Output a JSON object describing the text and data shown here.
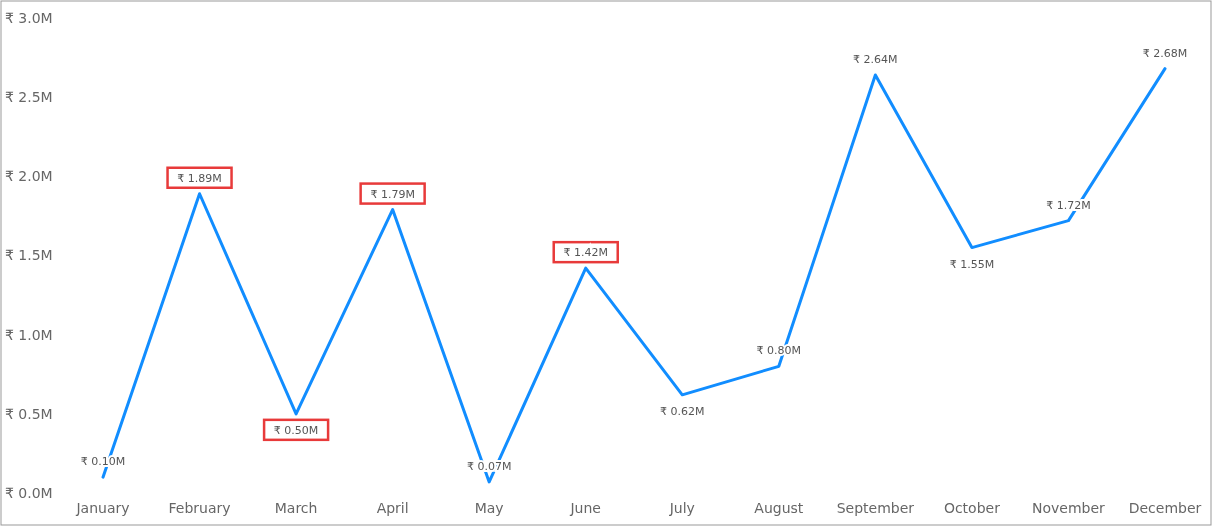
{
  "chart_data": {
    "type": "line",
    "categories": [
      "January",
      "February",
      "March",
      "April",
      "May",
      "June",
      "July",
      "August",
      "September",
      "October",
      "November",
      "December"
    ],
    "series": [
      {
        "color": "#118dff",
        "values": [
          0.1,
          1.89,
          0.5,
          1.79,
          0.07,
          1.42,
          0.62,
          0.8,
          2.64,
          1.55,
          1.72,
          2.68
        ],
        "value_labels": [
          "₹ 0.10M",
          "₹ 1.89M",
          "₹ 0.50M",
          "₹ 1.79M",
          "₹ 0.07M",
          "₹ 1.42M",
          "₹ 0.62M",
          "₹ 0.80M",
          "₹ 2.64M",
          "₹ 1.55M",
          "₹ 1.72M",
          "₹ 2.68M"
        ]
      }
    ],
    "ylim": [
      0,
      3
    ],
    "yticks": [
      {
        "value": 0,
        "label": "₹ 0.0M"
      },
      {
        "value": 0.5,
        "label": "₹ 0.5M"
      },
      {
        "value": 1,
        "label": "₹ 1.0M"
      },
      {
        "value": 1.5,
        "label": "₹ 1.5M"
      },
      {
        "value": 2,
        "label": "₹ 2.0M"
      },
      {
        "value": 2.5,
        "label": "₹ 2.5M"
      },
      {
        "value": 3,
        "label": "₹ 3.0M"
      }
    ],
    "grid": false,
    "marker": "none",
    "line_style": "solid"
  }
}
